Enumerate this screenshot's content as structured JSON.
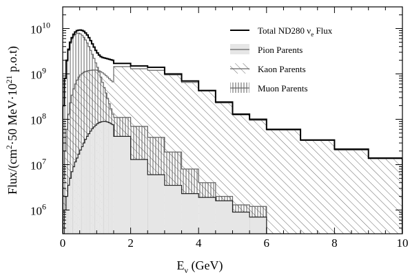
{
  "chart_data": {
    "type": "histogram",
    "xlabel": {
      "main": "E",
      "sub": "ν",
      "rest": " (GeV)"
    },
    "ylabel": {
      "pre": "Flux/(cm",
      "sup1": "2",
      "mid": "·50 MeV·10",
      "sup2": "21",
      "post": " p.o.t)"
    },
    "xlim": [
      0,
      10
    ],
    "ylim": [
      300000,
      30000000000
    ],
    "yscale": "log",
    "x_ticks": [
      0,
      2,
      4,
      6,
      8,
      10
    ],
    "y_ticks": [
      {
        "value": 1000000,
        "base": "10",
        "exp": "6"
      },
      {
        "value": 10000000,
        "base": "10",
        "exp": "7"
      },
      {
        "value": 100000000,
        "base": "10",
        "exp": "8"
      },
      {
        "value": 1000000000,
        "base": "10",
        "exp": "9"
      },
      {
        "value": 10000000000,
        "base": "10",
        "exp": "10"
      }
    ],
    "grid": false,
    "legend_position": "top-right",
    "legend": [
      {
        "label_pre": "Total ND280 ν",
        "label_sub": "e",
        "label_post": " Flux",
        "style": "line"
      },
      {
        "label_pre": "Pion Parents",
        "label_sub": "",
        "label_post": "",
        "style": "gray-fill"
      },
      {
        "label_pre": "Kaon Parents",
        "label_sub": "",
        "label_post": "",
        "style": "diagonal-hatch"
      },
      {
        "label_pre": "Muon Parents",
        "label_sub": "",
        "label_post": "",
        "style": "vertical-hatch"
      }
    ],
    "series": [
      {
        "name": "Total ND280 νe Flux",
        "style": "line",
        "color": "#000000",
        "bins": [
          [
            0,
            0.05,
            200000000
          ],
          [
            0.05,
            0.1,
            800000000
          ],
          [
            0.1,
            0.15,
            2000000000
          ],
          [
            0.15,
            0.2,
            3500000000
          ],
          [
            0.2,
            0.25,
            5000000000
          ],
          [
            0.25,
            0.3,
            6300000000
          ],
          [
            0.3,
            0.35,
            7500000000
          ],
          [
            0.35,
            0.4,
            8400000000
          ],
          [
            0.4,
            0.45,
            9000000000
          ],
          [
            0.45,
            0.5,
            9200000000
          ],
          [
            0.5,
            0.55,
            9300000000
          ],
          [
            0.55,
            0.6,
            9100000000
          ],
          [
            0.6,
            0.65,
            8700000000
          ],
          [
            0.65,
            0.7,
            8000000000
          ],
          [
            0.7,
            0.75,
            7200000000
          ],
          [
            0.75,
            0.8,
            6300000000
          ],
          [
            0.8,
            0.85,
            5400000000
          ],
          [
            0.85,
            0.9,
            4600000000
          ],
          [
            0.9,
            0.95,
            3900000000
          ],
          [
            0.95,
            1.0,
            3300000000
          ],
          [
            1.0,
            1.05,
            2900000000
          ],
          [
            1.05,
            1.1,
            2600000000
          ],
          [
            1.1,
            1.15,
            2400000000
          ],
          [
            1.15,
            1.2,
            2300000000
          ],
          [
            1.2,
            1.25,
            2250000000
          ],
          [
            1.25,
            1.3,
            2200000000
          ],
          [
            1.3,
            1.35,
            2150000000
          ],
          [
            1.35,
            1.4,
            2100000000
          ],
          [
            1.4,
            1.45,
            2050000000
          ],
          [
            1.45,
            1.5,
            2000000000
          ],
          [
            1.5,
            2.0,
            1700000000
          ],
          [
            2.0,
            2.5,
            1500000000
          ],
          [
            2.5,
            3.0,
            1400000000
          ],
          [
            3.0,
            3.5,
            1000000000
          ],
          [
            3.5,
            4.0,
            700000000
          ],
          [
            4.0,
            4.5,
            430000000
          ],
          [
            4.5,
            5.0,
            240000000
          ],
          [
            5.0,
            5.5,
            130000000
          ],
          [
            5.5,
            6.0,
            100000000
          ],
          [
            6.0,
            7.0,
            60000000
          ],
          [
            7.0,
            8.0,
            35000000
          ],
          [
            8.0,
            9.0,
            22000000
          ],
          [
            9.0,
            10.0,
            14000000
          ]
        ]
      },
      {
        "name": "Kaon Parents",
        "style": "diagonal-hatch",
        "color": "#555555",
        "bins": [
          [
            0,
            0.05,
            5000000
          ],
          [
            0.05,
            0.1,
            20000000
          ],
          [
            0.1,
            0.15,
            60000000
          ],
          [
            0.15,
            0.2,
            130000000
          ],
          [
            0.2,
            0.25,
            230000000
          ],
          [
            0.25,
            0.3,
            340000000
          ],
          [
            0.3,
            0.35,
            470000000
          ],
          [
            0.35,
            0.4,
            600000000
          ],
          [
            0.4,
            0.45,
            730000000
          ],
          [
            0.45,
            0.5,
            850000000
          ],
          [
            0.5,
            0.55,
            950000000
          ],
          [
            0.55,
            0.6,
            1030000000
          ],
          [
            0.6,
            0.65,
            1090000000
          ],
          [
            0.65,
            0.7,
            1130000000
          ],
          [
            0.7,
            0.75,
            1160000000
          ],
          [
            0.75,
            0.8,
            1180000000
          ],
          [
            0.8,
            0.85,
            1200000000
          ],
          [
            0.85,
            0.9,
            1210000000
          ],
          [
            0.9,
            0.95,
            1220000000
          ],
          [
            0.95,
            1.0,
            1220000000
          ],
          [
            1.0,
            1.05,
            1200000000
          ],
          [
            1.05,
            1.1,
            1170000000
          ],
          [
            1.1,
            1.15,
            1120000000
          ],
          [
            1.15,
            1.2,
            1060000000
          ],
          [
            1.2,
            1.25,
            990000000
          ],
          [
            1.25,
            1.3,
            920000000
          ],
          [
            1.3,
            1.35,
            850000000
          ],
          [
            1.35,
            1.4,
            780000000
          ],
          [
            1.4,
            1.45,
            720000000
          ],
          [
            1.45,
            1.5,
            670000000
          ],
          [
            1.5,
            2.0,
            1450000000
          ],
          [
            2.0,
            2.5,
            1300000000
          ],
          [
            2.5,
            3.0,
            1200000000
          ],
          [
            3.0,
            3.5,
            950000000
          ],
          [
            3.5,
            4.0,
            650000000
          ],
          [
            4.0,
            4.5,
            420000000
          ],
          [
            4.5,
            5.0,
            230000000
          ],
          [
            5.0,
            5.5,
            125000000
          ],
          [
            5.5,
            6.0,
            95000000
          ],
          [
            6.0,
            7.0,
            58000000
          ],
          [
            7.0,
            8.0,
            34000000
          ],
          [
            8.0,
            9.0,
            21000000
          ],
          [
            9.0,
            10.0,
            13500000
          ]
        ]
      },
      {
        "name": "Muon Parents",
        "style": "vertical-hatch",
        "color": "#333333",
        "bins": [
          [
            0,
            0.05,
            200000000
          ],
          [
            0.05,
            0.1,
            780000000
          ],
          [
            0.1,
            0.15,
            1900000000
          ],
          [
            0.15,
            0.2,
            3300000000
          ],
          [
            0.2,
            0.25,
            4700000000
          ],
          [
            0.25,
            0.3,
            5900000000
          ],
          [
            0.3,
            0.35,
            6900000000
          ],
          [
            0.35,
            0.4,
            7500000000
          ],
          [
            0.4,
            0.45,
            7900000000
          ],
          [
            0.45,
            0.5,
            7900000000
          ],
          [
            0.5,
            0.55,
            7600000000
          ],
          [
            0.55,
            0.6,
            7100000000
          ],
          [
            0.6,
            0.65,
            6400000000
          ],
          [
            0.65,
            0.7,
            5600000000
          ],
          [
            0.7,
            0.75,
            4800000000
          ],
          [
            0.75,
            0.8,
            4000000000
          ],
          [
            0.8,
            0.85,
            3300000000
          ],
          [
            0.85,
            0.9,
            2700000000
          ],
          [
            0.9,
            0.95,
            2200000000
          ],
          [
            0.95,
            1.0,
            1750000000
          ],
          [
            1.0,
            1.05,
            1400000000
          ],
          [
            1.05,
            1.1,
            1100000000
          ],
          [
            1.1,
            1.15,
            850000000
          ],
          [
            1.15,
            1.2,
            650000000
          ],
          [
            1.2,
            1.25,
            500000000
          ],
          [
            1.25,
            1.3,
            380000000
          ],
          [
            1.3,
            1.35,
            290000000
          ],
          [
            1.35,
            1.4,
            220000000
          ],
          [
            1.4,
            1.45,
            170000000
          ],
          [
            1.45,
            1.5,
            130000000
          ],
          [
            1.5,
            2.0,
            110000000
          ],
          [
            2.0,
            2.5,
            70000000
          ],
          [
            2.5,
            3.0,
            40000000
          ],
          [
            3.0,
            3.5,
            19000000
          ],
          [
            3.5,
            4.0,
            8000000
          ],
          [
            4.0,
            4.5,
            4000000
          ],
          [
            4.5,
            5.0,
            2000000
          ],
          [
            5.0,
            5.5,
            1300000
          ],
          [
            5.5,
            6.0,
            1200000
          ],
          [
            6.0,
            7.0,
            300000
          ]
        ]
      },
      {
        "name": "Pion Parents",
        "style": "gray-fill",
        "color": "#e8e8e8",
        "bins": [
          [
            0,
            0.05,
            300000
          ],
          [
            0.05,
            0.1,
            1000000
          ],
          [
            0.1,
            0.15,
            2000000
          ],
          [
            0.15,
            0.2,
            3500000
          ],
          [
            0.2,
            0.25,
            5000000
          ],
          [
            0.25,
            0.3,
            7000000
          ],
          [
            0.3,
            0.35,
            9000000
          ],
          [
            0.35,
            0.4,
            11500000
          ],
          [
            0.4,
            0.45,
            14000000
          ],
          [
            0.45,
            0.5,
            17000000
          ],
          [
            0.5,
            0.55,
            21000000
          ],
          [
            0.55,
            0.6,
            25000000
          ],
          [
            0.6,
            0.65,
            30000000
          ],
          [
            0.65,
            0.7,
            36000000
          ],
          [
            0.7,
            0.75,
            42000000
          ],
          [
            0.75,
            0.8,
            48000000
          ],
          [
            0.8,
            0.85,
            55000000
          ],
          [
            0.85,
            0.9,
            62000000
          ],
          [
            0.9,
            0.95,
            68000000
          ],
          [
            0.95,
            1.0,
            74000000
          ],
          [
            1.0,
            1.05,
            80000000
          ],
          [
            1.05,
            1.1,
            84000000
          ],
          [
            1.1,
            1.15,
            87000000
          ],
          [
            1.15,
            1.2,
            89000000
          ],
          [
            1.2,
            1.25,
            90000000
          ],
          [
            1.25,
            1.3,
            89000000
          ],
          [
            1.3,
            1.35,
            87000000
          ],
          [
            1.35,
            1.4,
            84000000
          ],
          [
            1.4,
            1.45,
            80000000
          ],
          [
            1.45,
            1.5,
            76000000
          ],
          [
            1.5,
            2.0,
            42000000
          ],
          [
            2.0,
            2.5,
            13000000
          ],
          [
            2.5,
            3.0,
            6000000
          ],
          [
            3.0,
            3.5,
            3500000
          ],
          [
            3.5,
            4.0,
            2300000
          ],
          [
            4.0,
            4.5,
            1900000
          ],
          [
            4.5,
            5.0,
            1600000
          ],
          [
            5.0,
            5.5,
            900000
          ],
          [
            5.5,
            6.0,
            700000
          ]
        ]
      }
    ]
  }
}
